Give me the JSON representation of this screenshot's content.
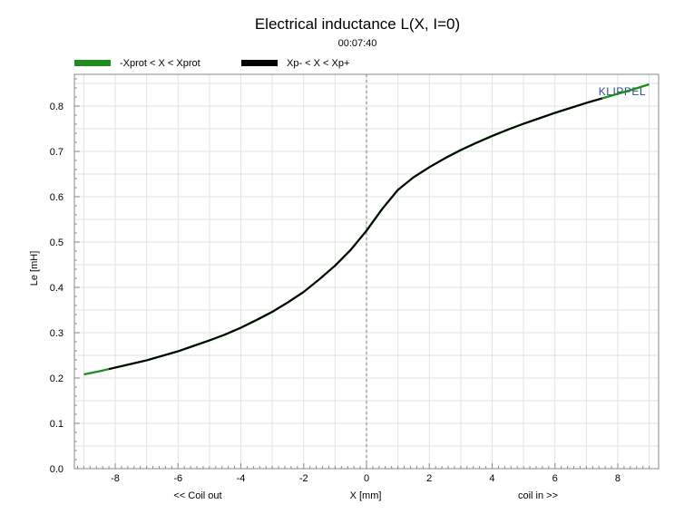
{
  "chart_data": {
    "type": "line",
    "title": "Electrical inductance L(X, I=0)",
    "subtitle": "00:07:40",
    "xlabel": "X [mm]",
    "ylabel": "Le [mH]",
    "x_annotation_left": "<< Coil out",
    "x_annotation_right": "coil in >>",
    "brand": "KLIPPEL",
    "xlim": [
      -9.3,
      9.3
    ],
    "ylim": [
      0,
      0.87
    ],
    "x_ticks": [
      -8,
      -6,
      -4,
      -2,
      0,
      2,
      4,
      6,
      8
    ],
    "x_tick_labels": [
      "-8",
      "-6",
      "-4",
      "-2",
      "0",
      "2",
      "4",
      "6",
      "8"
    ],
    "y_ticks": [
      0.0,
      0.1,
      0.2,
      0.3,
      0.4,
      0.5,
      0.6,
      0.7,
      0.8
    ],
    "y_tick_labels": [
      "0.0",
      "0.1",
      "0.2",
      "0.3",
      "0.4",
      "0.5",
      "0.6",
      "0.7",
      "0.8"
    ],
    "grid": true,
    "zero_line": "dashed",
    "legend_position": "top-left",
    "x": [
      -9.0,
      -8.5,
      -8.0,
      -7.5,
      -7.0,
      -6.5,
      -6.0,
      -5.5,
      -5.0,
      -4.5,
      -4.0,
      -3.5,
      -3.0,
      -2.5,
      -2.0,
      -1.5,
      -1.0,
      -0.5,
      0.0,
      0.5,
      1.0,
      1.5,
      2.0,
      2.5,
      3.0,
      3.5,
      4.0,
      4.5,
      5.0,
      5.5,
      6.0,
      6.5,
      7.0,
      7.5,
      8.0,
      8.5,
      9.0
    ],
    "series": [
      {
        "name": "-Xprot < X < Xprot",
        "color": "#1e8c1e",
        "x_range": [
          -9.0,
          9.0
        ],
        "values": [
          0.208,
          0.215,
          0.223,
          0.231,
          0.239,
          0.249,
          0.259,
          0.271,
          0.283,
          0.296,
          0.311,
          0.328,
          0.346,
          0.367,
          0.39,
          0.418,
          0.448,
          0.483,
          0.525,
          0.573,
          0.615,
          0.643,
          0.665,
          0.685,
          0.703,
          0.719,
          0.734,
          0.748,
          0.761,
          0.773,
          0.785,
          0.796,
          0.807,
          0.817,
          0.827,
          0.837,
          0.848
        ]
      },
      {
        "name": "Xp- < X < Xp+",
        "color": "#000000",
        "x_range": [
          -8.2,
          7.5
        ],
        "values": [
          0.208,
          0.215,
          0.223,
          0.231,
          0.239,
          0.249,
          0.259,
          0.271,
          0.283,
          0.296,
          0.311,
          0.328,
          0.346,
          0.367,
          0.39,
          0.418,
          0.448,
          0.483,
          0.525,
          0.573,
          0.615,
          0.643,
          0.665,
          0.685,
          0.703,
          0.719,
          0.734,
          0.748,
          0.761,
          0.773,
          0.785,
          0.796,
          0.807,
          0.817,
          0.827,
          0.837,
          0.848
        ]
      }
    ]
  }
}
